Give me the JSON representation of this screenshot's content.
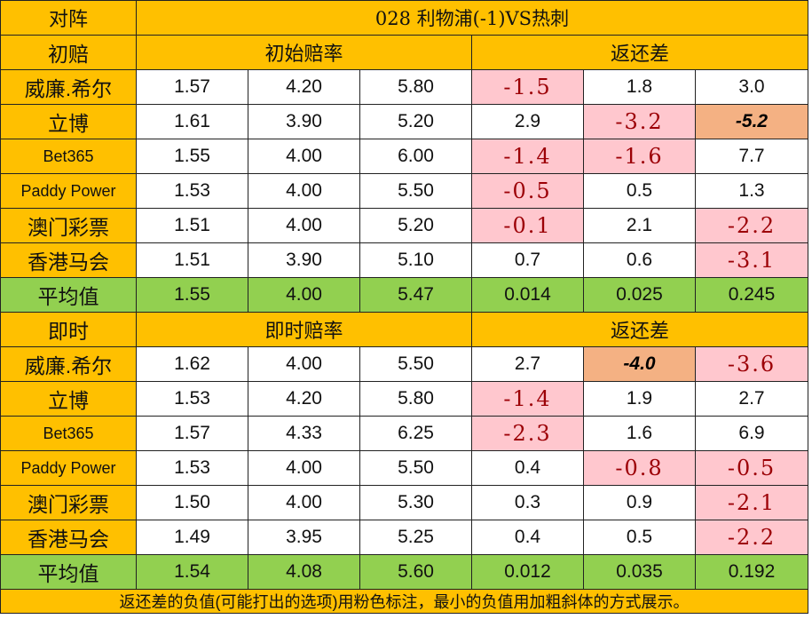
{
  "header": {
    "corner": "对阵",
    "match": "028 利物浦(-1)VS热刺"
  },
  "sections": [
    {
      "label": "初赔",
      "odds_header": "初始赔率",
      "return_header": "返还差",
      "rows": [
        {
          "company": "威廉.希尔",
          "small": false,
          "odds": [
            "1.57",
            "4.20",
            "5.80"
          ],
          "diff": [
            "-1.5",
            "1.8",
            "3.0"
          ],
          "neg": [
            true,
            false,
            false
          ],
          "min": [
            false,
            false,
            false
          ]
        },
        {
          "company": "立博",
          "small": false,
          "odds": [
            "1.61",
            "3.90",
            "5.20"
          ],
          "diff": [
            "2.9",
            "-3.2",
            "-5.2"
          ],
          "neg": [
            false,
            true,
            false
          ],
          "min": [
            false,
            false,
            true
          ]
        },
        {
          "company": "Bet365",
          "small": true,
          "odds": [
            "1.55",
            "4.00",
            "6.00"
          ],
          "diff": [
            "-1.4",
            "-1.6",
            "7.7"
          ],
          "neg": [
            true,
            true,
            false
          ],
          "min": [
            false,
            false,
            false
          ]
        },
        {
          "company": "Paddy Power",
          "small": true,
          "odds": [
            "1.53",
            "4.00",
            "5.50"
          ],
          "diff": [
            "-0.5",
            "0.5",
            "1.3"
          ],
          "neg": [
            true,
            false,
            false
          ],
          "min": [
            false,
            false,
            false
          ]
        },
        {
          "company": "澳门彩票",
          "small": false,
          "odds": [
            "1.51",
            "4.00",
            "5.20"
          ],
          "diff": [
            "-0.1",
            "2.1",
            "-2.2"
          ],
          "neg": [
            true,
            false,
            true
          ],
          "min": [
            false,
            false,
            false
          ]
        },
        {
          "company": "香港马会",
          "small": false,
          "odds": [
            "1.51",
            "3.90",
            "5.10"
          ],
          "diff": [
            "0.7",
            "0.6",
            "-3.1"
          ],
          "neg": [
            false,
            false,
            true
          ],
          "min": [
            false,
            false,
            false
          ]
        }
      ],
      "average": {
        "label": "平均值",
        "odds": [
          "1.55",
          "4.00",
          "5.47"
        ],
        "diff": [
          "0.014",
          "0.025",
          "0.245"
        ]
      }
    },
    {
      "label": "即时",
      "odds_header": "即时赔率",
      "return_header": "返还差",
      "rows": [
        {
          "company": "威廉.希尔",
          "small": false,
          "odds": [
            "1.62",
            "4.00",
            "5.50"
          ],
          "diff": [
            "2.7",
            "-4.0",
            "-3.6"
          ],
          "neg": [
            false,
            false,
            true
          ],
          "min": [
            false,
            true,
            false
          ]
        },
        {
          "company": "立博",
          "small": false,
          "odds": [
            "1.53",
            "4.20",
            "5.80"
          ],
          "diff": [
            "-1.4",
            "1.9",
            "2.7"
          ],
          "neg": [
            true,
            false,
            false
          ],
          "min": [
            false,
            false,
            false
          ]
        },
        {
          "company": "Bet365",
          "small": true,
          "odds": [
            "1.57",
            "4.33",
            "6.25"
          ],
          "diff": [
            "-2.3",
            "1.6",
            "6.9"
          ],
          "neg": [
            true,
            false,
            false
          ],
          "min": [
            false,
            false,
            false
          ]
        },
        {
          "company": "Paddy Power",
          "small": true,
          "odds": [
            "1.53",
            "4.00",
            "5.50"
          ],
          "diff": [
            "0.4",
            "-0.8",
            "-0.5"
          ],
          "neg": [
            false,
            true,
            true
          ],
          "min": [
            false,
            false,
            false
          ]
        },
        {
          "company": "澳门彩票",
          "small": false,
          "odds": [
            "1.50",
            "4.00",
            "5.30"
          ],
          "diff": [
            "0.3",
            "0.9",
            "-2.1"
          ],
          "neg": [
            false,
            false,
            true
          ],
          "min": [
            false,
            false,
            false
          ]
        },
        {
          "company": "香港马会",
          "small": false,
          "odds": [
            "1.49",
            "3.95",
            "5.25"
          ],
          "diff": [
            "0.4",
            "0.5",
            "-2.2"
          ],
          "neg": [
            false,
            false,
            true
          ],
          "min": [
            false,
            false,
            false
          ]
        }
      ],
      "average": {
        "label": "平均值",
        "odds": [
          "1.54",
          "4.08",
          "5.60"
        ],
        "diff": [
          "0.012",
          "0.035",
          "0.192"
        ]
      }
    }
  ],
  "footer": "返还差的负值(可能打出的选项)用粉色标注，最小的负值用加粗斜体的方式展示。",
  "colors": {
    "header": "#FFC000",
    "average": "#92D050",
    "negative": "#FFC7CE",
    "minimum": "#F4B183"
  }
}
